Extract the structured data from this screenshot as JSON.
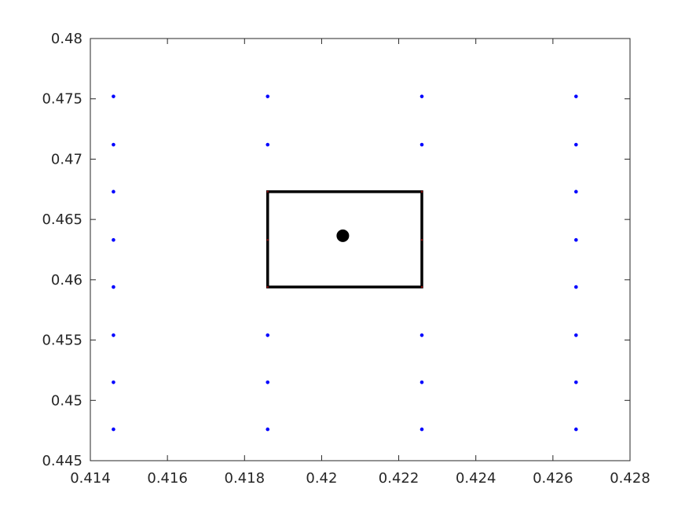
{
  "chart_data": {
    "type": "scatter",
    "title": "",
    "xlabel": "",
    "ylabel": "",
    "xlim": [
      0.414,
      0.428
    ],
    "ylim": [
      0.445,
      0.48
    ],
    "x_ticks": [
      0.414,
      0.416,
      0.418,
      0.42,
      0.422,
      0.424,
      0.426,
      0.428
    ],
    "x_tick_labels": [
      "0.414",
      "0.416",
      "0.418",
      "0.42",
      "0.422",
      "0.424",
      "0.426",
      "0.428"
    ],
    "y_ticks": [
      0.445,
      0.45,
      0.455,
      0.46,
      0.465,
      0.47,
      0.475,
      0.48
    ],
    "y_tick_labels": [
      "0.445",
      "0.45",
      "0.455",
      "0.46",
      "0.465",
      "0.47",
      "0.475",
      "0.48"
    ],
    "grid": false,
    "legend": "none",
    "series": [
      {
        "color": "#0000ff",
        "marker": "dot",
        "points": [
          {
            "x": 0.4146,
            "y": 0.4752
          },
          {
            "x": 0.4146,
            "y": 0.4712
          },
          {
            "x": 0.4146,
            "y": 0.4673
          },
          {
            "x": 0.4146,
            "y": 0.4633
          },
          {
            "x": 0.4146,
            "y": 0.4594
          },
          {
            "x": 0.4146,
            "y": 0.4554
          },
          {
            "x": 0.4146,
            "y": 0.4515
          },
          {
            "x": 0.4146,
            "y": 0.4476
          },
          {
            "x": 0.4186,
            "y": 0.4752
          },
          {
            "x": 0.4186,
            "y": 0.4712
          },
          {
            "x": 0.4186,
            "y": 0.4554
          },
          {
            "x": 0.4186,
            "y": 0.4515
          },
          {
            "x": 0.4186,
            "y": 0.4476
          },
          {
            "x": 0.4226,
            "y": 0.4752
          },
          {
            "x": 0.4226,
            "y": 0.4712
          },
          {
            "x": 0.4226,
            "y": 0.4554
          },
          {
            "x": 0.4226,
            "y": 0.4515
          },
          {
            "x": 0.4226,
            "y": 0.4476
          },
          {
            "x": 0.4266,
            "y": 0.4752
          },
          {
            "x": 0.4266,
            "y": 0.4712
          },
          {
            "x": 0.4266,
            "y": 0.4673
          },
          {
            "x": 0.4266,
            "y": 0.4633
          },
          {
            "x": 0.4266,
            "y": 0.4594
          },
          {
            "x": 0.4266,
            "y": 0.4554
          },
          {
            "x": 0.4266,
            "y": 0.4515
          },
          {
            "x": 0.4266,
            "y": 0.4476
          }
        ]
      },
      {
        "color": "#8b0000",
        "marker": "dot-small",
        "points": [
          {
            "x": 0.4186,
            "y": 0.4673
          },
          {
            "x": 0.4186,
            "y": 0.4633
          },
          {
            "x": 0.4186,
            "y": 0.4594
          },
          {
            "x": 0.4226,
            "y": 0.4673
          },
          {
            "x": 0.4226,
            "y": 0.4633
          },
          {
            "x": 0.4226,
            "y": 0.4594
          }
        ]
      }
    ],
    "rectangle": {
      "x0": 0.4186,
      "x1": 0.4226,
      "y0": 0.4594,
      "y1": 0.4673,
      "color": "#000000"
    },
    "center_point": {
      "x": 0.42055,
      "y": 0.46365,
      "color": "#000000"
    }
  }
}
